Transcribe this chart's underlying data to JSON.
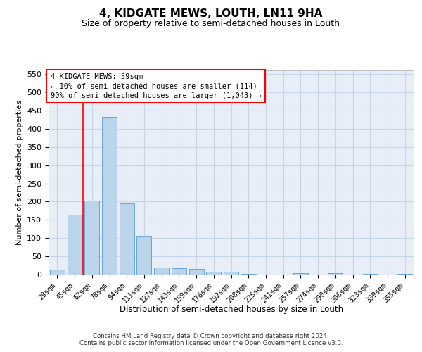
{
  "title": "4, KIDGATE MEWS, LOUTH, LN11 9HA",
  "subtitle": "Size of property relative to semi-detached houses in Louth",
  "xlabel": "Distribution of semi-detached houses by size in Louth",
  "ylabel": "Number of semi-detached properties",
  "categories": [
    "29sqm",
    "45sqm",
    "62sqm",
    "78sqm",
    "94sqm",
    "111sqm",
    "127sqm",
    "143sqm",
    "159sqm",
    "176sqm",
    "192sqm",
    "208sqm",
    "225sqm",
    "241sqm",
    "257sqm",
    "274sqm",
    "290sqm",
    "306sqm",
    "323sqm",
    "339sqm",
    "355sqm"
  ],
  "values": [
    13,
    165,
    202,
    432,
    196,
    106,
    20,
    18,
    15,
    7,
    7,
    1,
    0,
    0,
    3,
    0,
    3,
    0,
    2,
    0,
    2
  ],
  "bar_color": "#bad4ea",
  "bar_edge_color": "#5b9bd5",
  "ylim_max": 560,
  "yticks": [
    0,
    50,
    100,
    150,
    200,
    250,
    300,
    350,
    400,
    450,
    500,
    550
  ],
  "grid_color": "#c8d4e8",
  "bg_color": "#e8eef8",
  "annotation_line1": "4 KIDGATE MEWS: 59sqm",
  "annotation_line2": "← 10% of semi-detached houses are smaller (114)",
  "annotation_line3": "90% of semi-detached houses are larger (1,043) →",
  "vline_x": 1.5,
  "footer_line1": "Contains HM Land Registry data © Crown copyright and database right 2024.",
  "footer_line2": "Contains public sector information licensed under the Open Government Licence v3.0."
}
